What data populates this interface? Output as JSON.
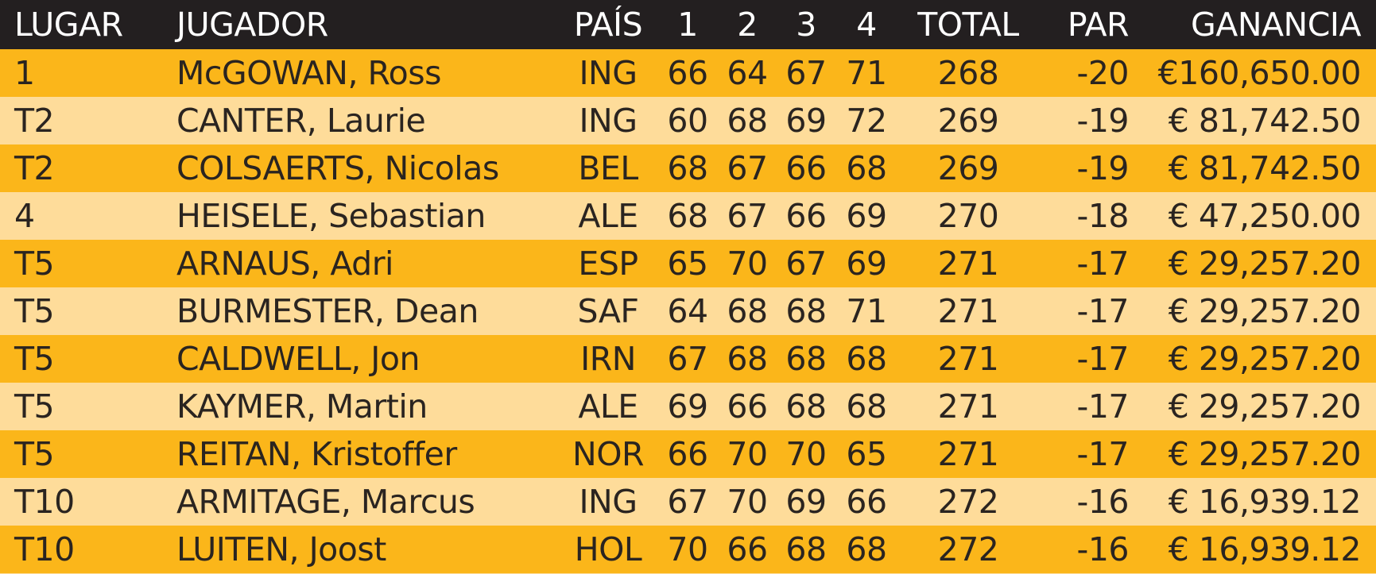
{
  "table": {
    "header": [
      "LUGAR",
      "JUGADOR",
      "PAÍS",
      "1",
      "2",
      "3",
      "4",
      "TOTAL",
      "PAR",
      "GANANCIA"
    ],
    "rows": [
      [
        "1",
        "McGOWAN, Ross",
        "ING",
        "66",
        "64",
        "67",
        "71",
        "268",
        "-20",
        "€160,650.00"
      ],
      [
        "T2",
        "CANTER, Laurie",
        "ING",
        "60",
        "68",
        "69",
        "72",
        "269",
        "-19",
        "€ 81,742.50"
      ],
      [
        "T2",
        "COLSAERTS, Nicolas",
        "BEL",
        "68",
        "67",
        "66",
        "68",
        "269",
        "-19",
        "€ 81,742.50"
      ],
      [
        "4",
        "HEISELE, Sebastian",
        "ALE",
        "68",
        "67",
        "66",
        "69",
        "270",
        "-18",
        "€ 47,250.00"
      ],
      [
        "T5",
        "ARNAUS, Adri",
        "ESP",
        "65",
        "70",
        "67",
        "69",
        "271",
        "-17",
        "€ 29,257.20"
      ],
      [
        "T5",
        "BURMESTER, Dean",
        "SAF",
        "64",
        "68",
        "68",
        "71",
        "271",
        "-17",
        "€ 29,257.20"
      ],
      [
        "T5",
        "CALDWELL, Jon",
        "IRN",
        "67",
        "68",
        "68",
        "68",
        "271",
        "-17",
        "€ 29,257.20"
      ],
      [
        "T5",
        "KAYMER, Martin",
        "ALE",
        "69",
        "66",
        "68",
        "68",
        "271",
        "-17",
        "€ 29,257.20"
      ],
      [
        "T5",
        "REITAN, Kristoffer",
        "NOR",
        "66",
        "70",
        "70",
        "65",
        "271",
        "-17",
        "€ 29,257.20"
      ],
      [
        "T10",
        "ARMITAGE, Marcus",
        "ING",
        "67",
        "70",
        "69",
        "66",
        "272",
        "-16",
        "€ 16,939.12"
      ],
      [
        "T10",
        "LUITEN, Joost",
        "HOL",
        "70",
        "66",
        "68",
        "68",
        "272",
        "-16",
        "€ 16,939.12"
      ]
    ]
  }
}
